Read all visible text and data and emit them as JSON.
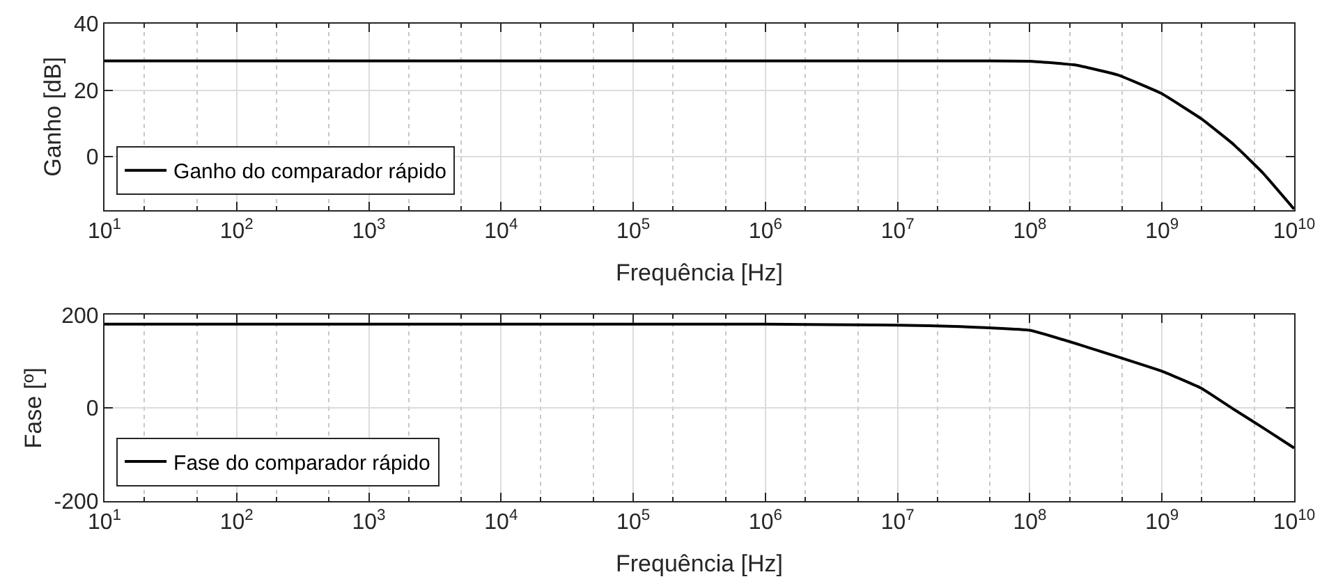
{
  "chart_data": [
    {
      "type": "line",
      "xlabel": "Frequência [Hz]",
      "ylabel": "Ganho [dB]",
      "log": "x",
      "grid": true,
      "legend": "bottom left",
      "marker": "none",
      "line_style": "solid",
      "xlim": [
        10,
        10000000000
      ],
      "xticks": [
        {
          "value": 10,
          "label": "10$^{1}$"
        },
        {
          "value": 100,
          "label": "10$^{2}$"
        },
        {
          "value": 1000,
          "label": "10$^{3}$"
        },
        {
          "value": 10000,
          "label": "10$^{4}$"
        },
        {
          "value": 100000,
          "label": "10$^{5}$"
        },
        {
          "value": 1000000,
          "label": "10$^{6}$"
        },
        {
          "value": 10000000,
          "label": "10$^{7}$"
        },
        {
          "value": 100000000,
          "label": "10$^{8}$"
        },
        {
          "value": 1000000000,
          "label": "10$^{9}$"
        },
        {
          "value": 10000000000,
          "label": "10$^{10}$"
        }
      ],
      "ylim": [
        -16,
        40
      ],
      "yticks": [
        0,
        20,
        40
      ],
      "series": [
        {
          "name": "Ganho do comparador rápido",
          "color": "#000000",
          "x": [
            10,
            1000,
            100000,
            10000000,
            50000000,
            100000000,
            220000000,
            470000000,
            980000000,
            2000000000,
            3500000000,
            5800000000,
            10000000000
          ],
          "values": [
            28.8,
            28.8,
            28.8,
            28.8,
            28.8,
            28.7,
            27.6,
            24.5,
            19.1,
            11.3,
            3.6,
            -4.9,
            -15.8
          ]
        }
      ]
    },
    {
      "type": "line",
      "xlabel": "Frequência [Hz]",
      "ylabel": "Fase [º]",
      "log": "x",
      "grid": true,
      "legend": "bottom left",
      "marker": "none",
      "line_style": "solid",
      "xlim": [
        10,
        10000000000
      ],
      "xticks": [
        {
          "value": 10,
          "label": "10$^{1}$"
        },
        {
          "value": 100,
          "label": "10$^{2}$"
        },
        {
          "value": 1000,
          "label": "10$^{3}$"
        },
        {
          "value": 10000,
          "label": "10$^{4}$"
        },
        {
          "value": 100000,
          "label": "10$^{5}$"
        },
        {
          "value": 1000000,
          "label": "10$^{6}$"
        },
        {
          "value": 10000000,
          "label": "10$^{7}$"
        },
        {
          "value": 100000000,
          "label": "10$^{8}$"
        },
        {
          "value": 1000000000,
          "label": "10$^{9}$"
        },
        {
          "value": 10000000000,
          "label": "10$^{10}$"
        }
      ],
      "ylim": [
        -200,
        200
      ],
      "yticks": [
        -200,
        0,
        200
      ],
      "series": [
        {
          "name": "Fase do comparador rápido",
          "color": "#000000",
          "x": [
            10,
            1000,
            100000,
            1000000,
            10000000,
            30000000,
            100000000,
            250000000,
            1000000000,
            2000000000,
            3500000000,
            6000000000,
            10000000000
          ],
          "values": [
            180,
            180,
            180,
            180,
            178,
            175,
            167,
            134,
            79,
            42,
            -3,
            -45,
            -86
          ]
        }
      ]
    }
  ]
}
